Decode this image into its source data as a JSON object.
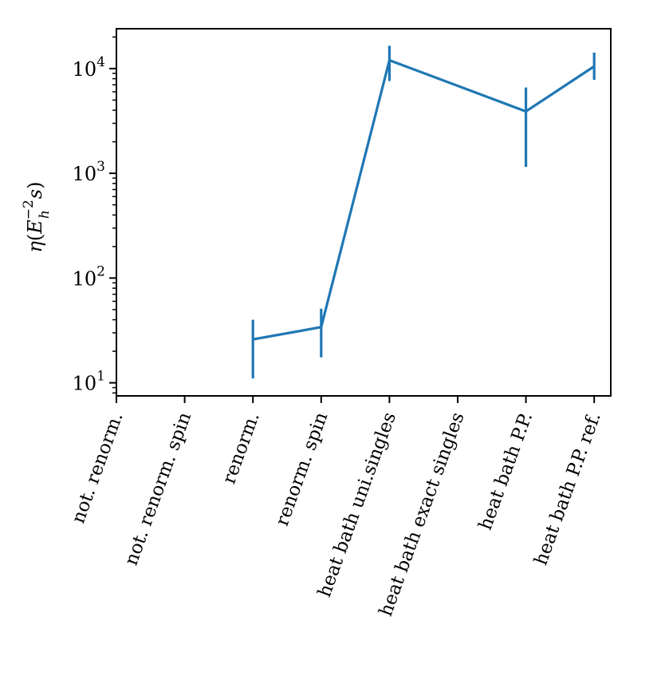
{
  "chart_data": {
    "type": "line",
    "yscale": "log",
    "ylim": [
      7.5,
      24000
    ],
    "ylabel_parts": {
      "eta": "η",
      "open": "(",
      "E": "E",
      "sup": "−2",
      "sub": "h",
      "s": "s",
      "close": ")"
    },
    "y_ticks": [
      {
        "value": 10,
        "base": "10",
        "exp": "1"
      },
      {
        "value": 100,
        "base": "10",
        "exp": "2"
      },
      {
        "value": 1000,
        "base": "10",
        "exp": "3"
      },
      {
        "value": 10000,
        "base": "10",
        "exp": "4"
      }
    ],
    "categories": [
      "not. renorm.",
      "not. renorm. spin",
      "renorm.",
      "renorm. spin",
      "heat bath uni.singles",
      "heat bath exact singles",
      "heat bath P.P.",
      "heat bath P.P. ref."
    ],
    "series": [
      {
        "color": "#1f77b4",
        "values": [
          null,
          null,
          26,
          34,
          12000,
          null,
          3900,
          10500
        ],
        "err_low": [
          null,
          null,
          11,
          17.5,
          7600,
          null,
          1150,
          7800
        ],
        "err_high": [
          null,
          null,
          40,
          51,
          16500,
          null,
          6600,
          14200
        ]
      }
    ],
    "grid": false,
    "legend": null
  }
}
